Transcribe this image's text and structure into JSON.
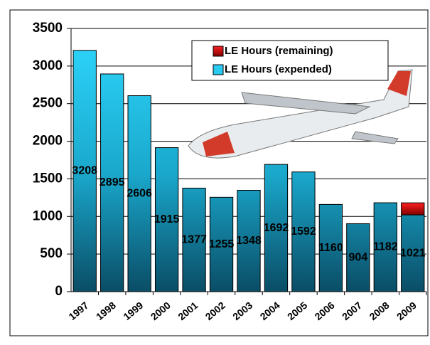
{
  "chart_data": {
    "type": "stacked_bar",
    "categories": [
      "1997",
      "1998",
      "1999",
      "2000",
      "2001",
      "2002",
      "2003",
      "2004",
      "2005",
      "2006",
      "2007",
      "2008",
      "2009"
    ],
    "series": [
      {
        "name": "LE Hours (expended)",
        "color": "#22c8f0",
        "values": [
          3208,
          2895,
          2606,
          1915,
          1377,
          1255,
          1348,
          1692,
          1592,
          1160,
          904,
          1182,
          1021
        ]
      },
      {
        "name": "LE Hours (remaining)",
        "color": "#cc0000",
        "values": [
          null,
          null,
          null,
          null,
          null,
          null,
          null,
          null,
          null,
          null,
          null,
          null,
          160
        ]
      }
    ],
    "ylim": [
      0,
      3500
    ],
    "yticks": [
      0,
      500,
      1000,
      1500,
      2000,
      2500,
      3000,
      3500
    ],
    "grid": true,
    "legend": "top-right"
  }
}
